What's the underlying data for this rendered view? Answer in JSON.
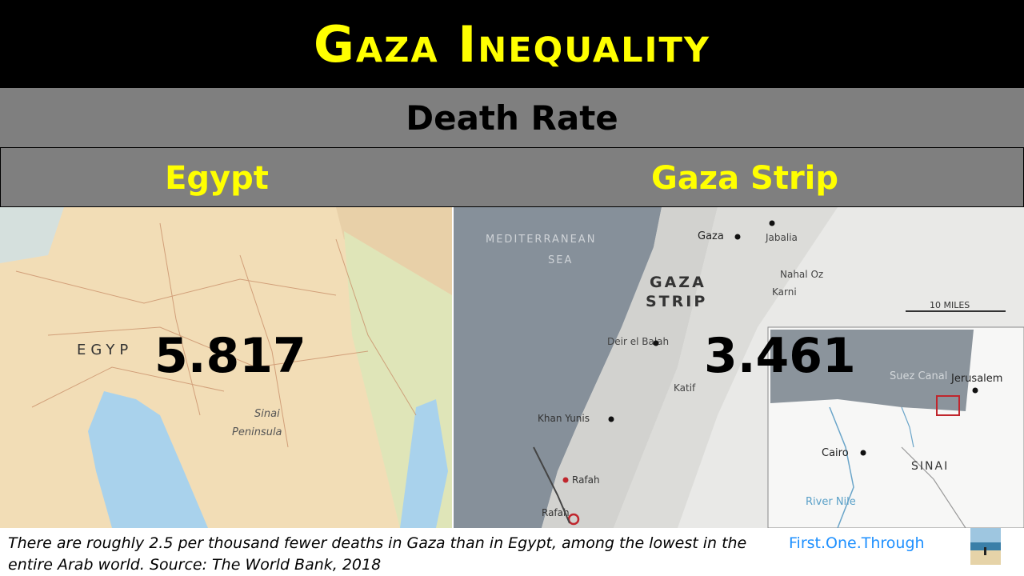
{
  "title": "Gaza Inequality",
  "subtitle": "Death Rate",
  "columns": {
    "left": {
      "heading": "Egypt",
      "value": "5.817"
    },
    "right": {
      "heading": "Gaza Strip",
      "value": "3.461"
    }
  },
  "egypt_map": {
    "labels": [
      "EGYP",
      "Sinai",
      "Peninsula"
    ]
  },
  "gaza_map": {
    "sea": [
      "MEDITERRANEAN",
      "SEA"
    ],
    "strip": [
      "GAZA",
      "STRIP"
    ],
    "places": [
      "Gaza",
      "Jabalia",
      "Nahal Oz",
      "Karni",
      "Deir el Balah",
      "Katif",
      "Khan Yunis",
      "Rafah",
      "Rafah"
    ],
    "scale": "10 MILES",
    "inset": [
      "Suez Canal",
      "Jerusalem",
      "Cairo",
      "SINAI",
      "River Nile"
    ]
  },
  "footer": {
    "caption": "There are roughly 2.5 per thousand fewer deaths in Gaza than in Egypt, among the lowest in the entire Arab world. Source: The World Bank, 2018",
    "brand": "First.One.Through"
  },
  "colors": {
    "title": "#ffff00",
    "banner": "#7f7f7f",
    "brand": "#1e90ff"
  }
}
